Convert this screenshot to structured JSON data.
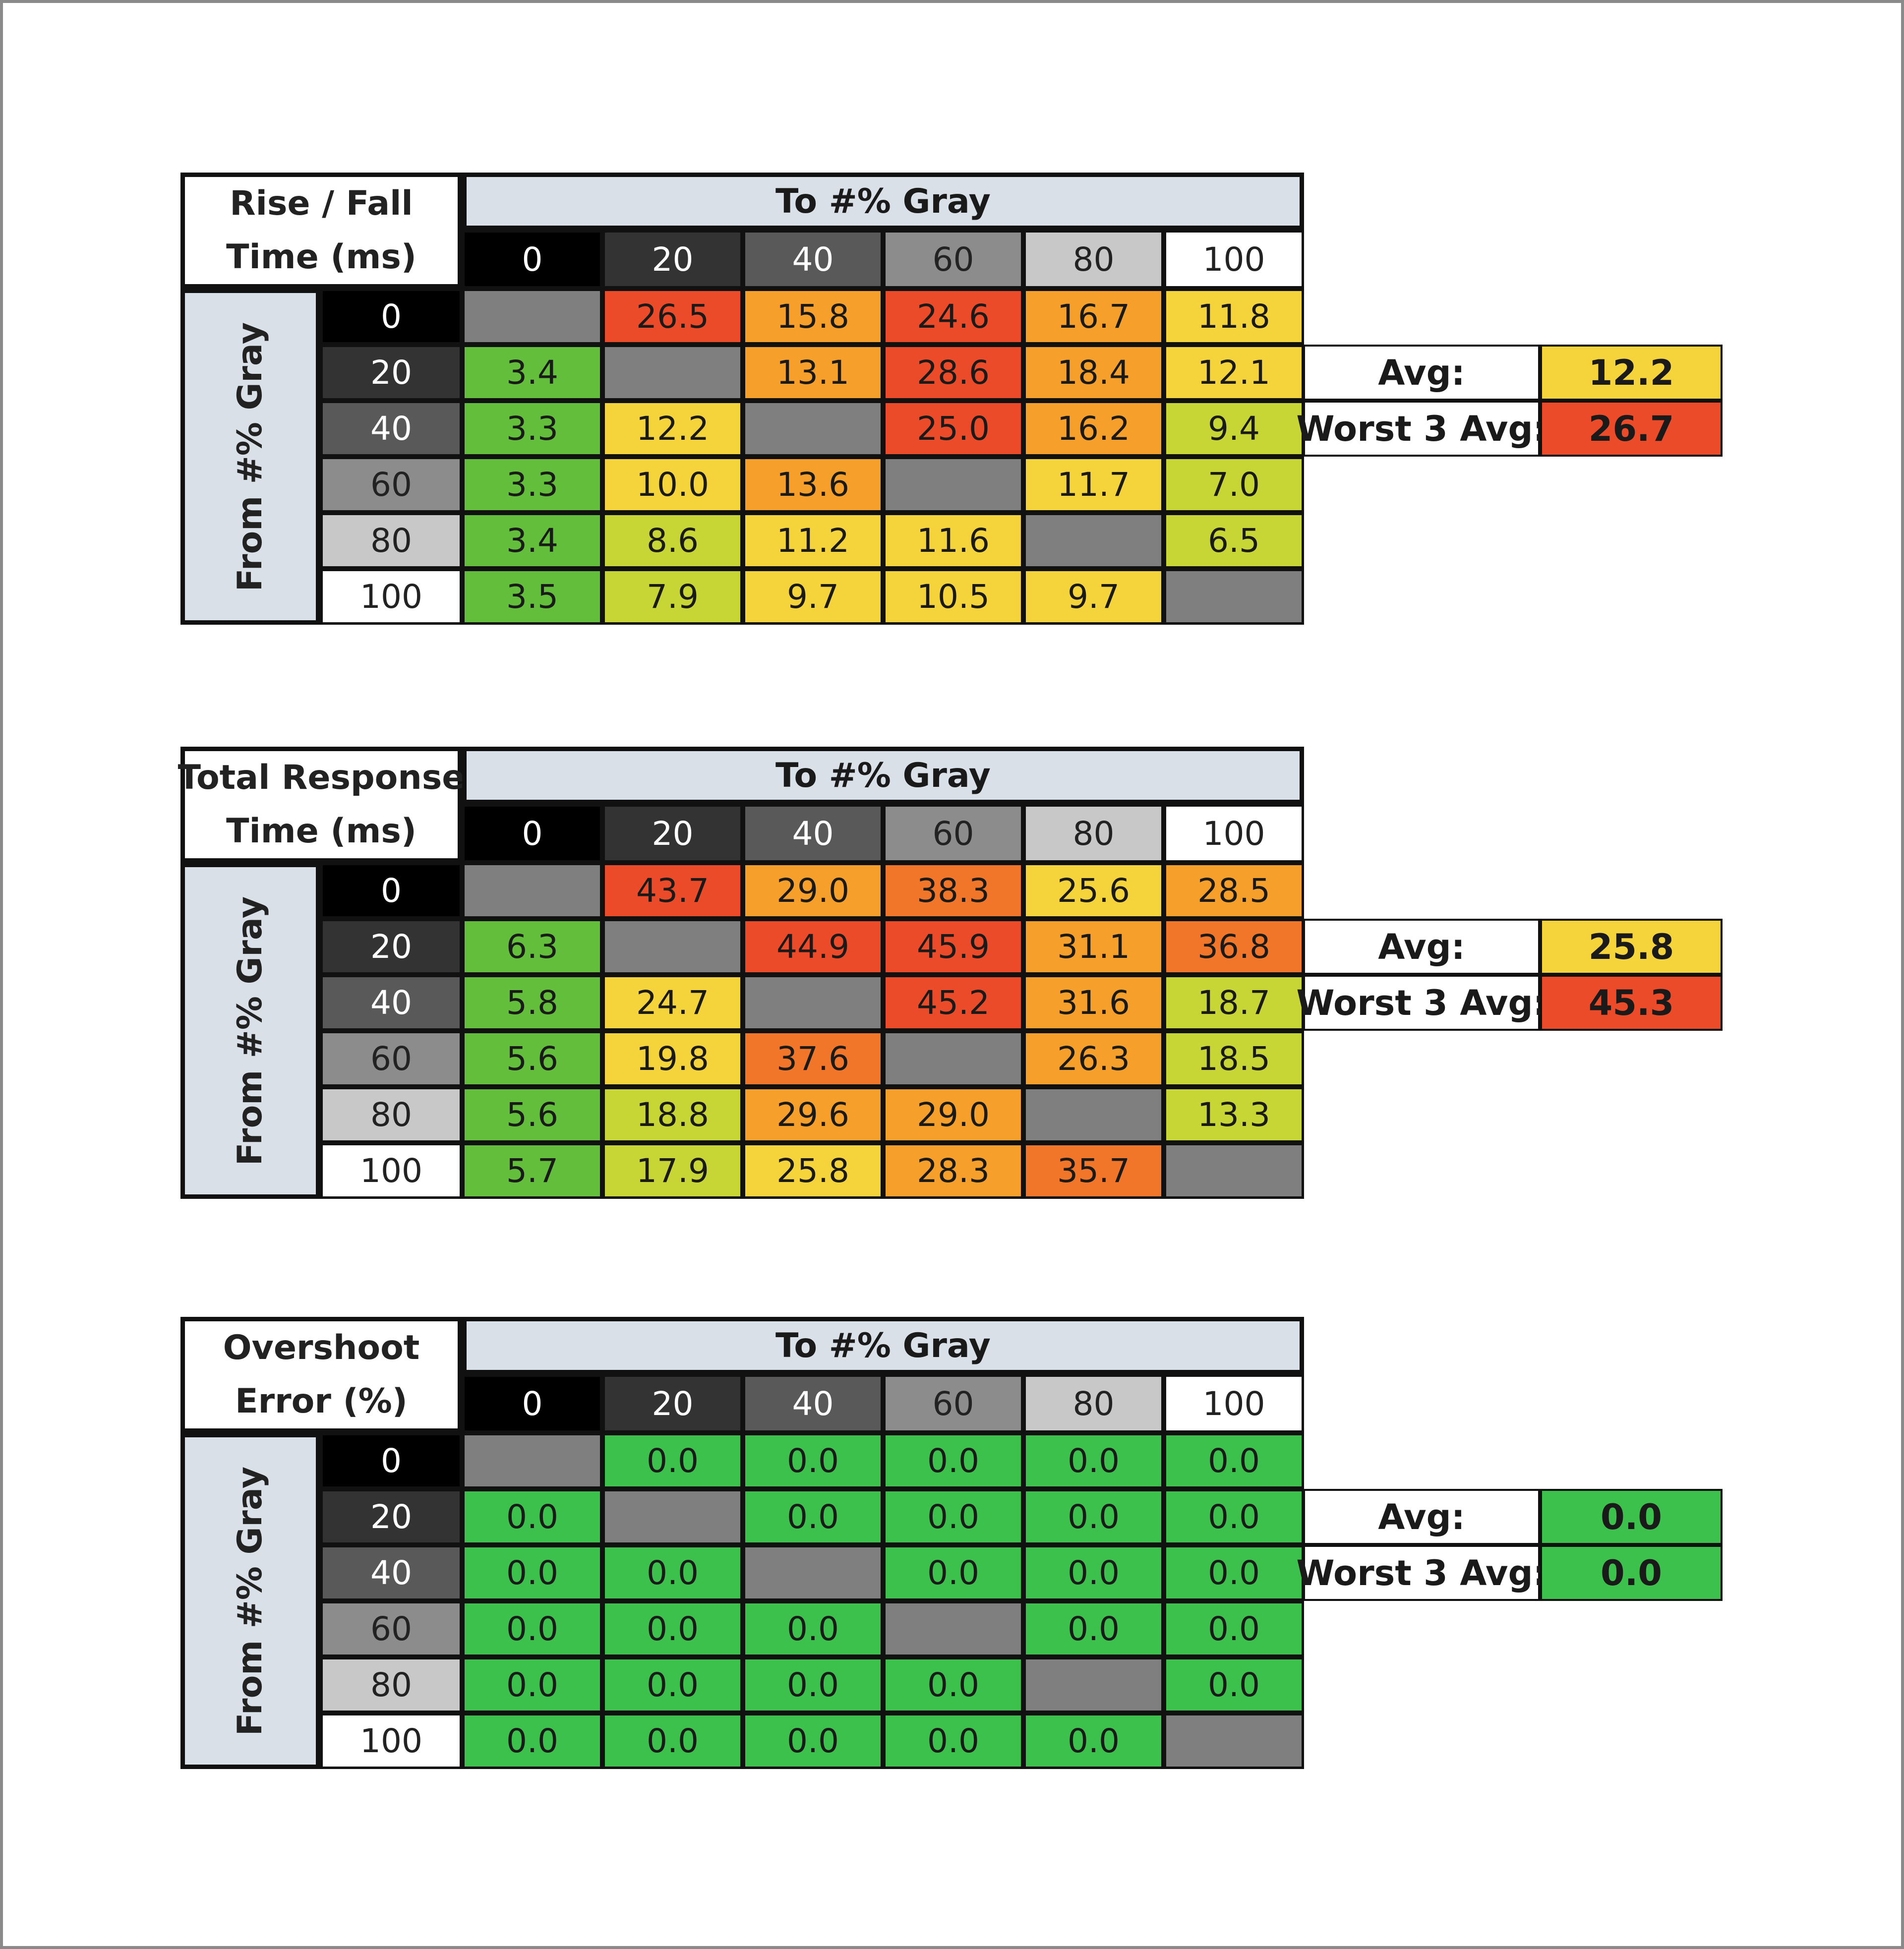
{
  "chart_data": [
    {
      "type": "heatmap",
      "title": "Rise / Fall Time (ms)",
      "title_lines": [
        "Rise / Fall",
        "Time (ms)"
      ],
      "xlabel": "To #% Gray",
      "ylabel": "From #% Gray",
      "x_categories": [
        "0",
        "20",
        "40",
        "60",
        "80",
        "100"
      ],
      "y_categories": [
        "0",
        "20",
        "40",
        "60",
        "80",
        "100"
      ],
      "cells": [
        [
          null,
          "26.5",
          "15.8",
          "24.6",
          "16.7",
          "11.8"
        ],
        [
          "3.4",
          null,
          "13.1",
          "28.6",
          "18.4",
          "12.1"
        ],
        [
          "3.3",
          "12.2",
          null,
          "25.0",
          "16.2",
          "9.4"
        ],
        [
          "3.3",
          "10.0",
          "13.6",
          null,
          "11.7",
          "7.0"
        ],
        [
          "3.4",
          "8.6",
          "11.2",
          "11.6",
          null,
          "6.5"
        ],
        [
          "3.5",
          "7.9",
          "9.7",
          "10.5",
          "9.7",
          null
        ]
      ],
      "summary": [
        {
          "label": "Avg:",
          "value": "12.2"
        },
        {
          "label": "Worst 3 Avg:",
          "value": "26.7"
        }
      ]
    },
    {
      "type": "heatmap",
      "title": "Total Response Time (ms)",
      "title_lines": [
        "Total Response",
        "Time (ms)"
      ],
      "xlabel": "To #% Gray",
      "ylabel": "From #% Gray",
      "x_categories": [
        "0",
        "20",
        "40",
        "60",
        "80",
        "100"
      ],
      "y_categories": [
        "0",
        "20",
        "40",
        "60",
        "80",
        "100"
      ],
      "cells": [
        [
          null,
          "43.7",
          "29.0",
          "38.3",
          "25.6",
          "28.5"
        ],
        [
          "6.3",
          null,
          "44.9",
          "45.9",
          "31.1",
          "36.8"
        ],
        [
          "5.8",
          "24.7",
          null,
          "45.2",
          "31.6",
          "18.7"
        ],
        [
          "5.6",
          "19.8",
          "37.6",
          null,
          "26.3",
          "18.5"
        ],
        [
          "5.6",
          "18.8",
          "29.6",
          "29.0",
          null,
          "13.3"
        ],
        [
          "5.7",
          "17.9",
          "25.8",
          "28.3",
          "35.7",
          null
        ]
      ],
      "summary": [
        {
          "label": "Avg:",
          "value": "25.8"
        },
        {
          "label": "Worst 3 Avg:",
          "value": "45.3"
        }
      ]
    },
    {
      "type": "heatmap",
      "title": "Overshoot Error (%)",
      "title_lines": [
        "Overshoot",
        "Error (%)"
      ],
      "xlabel": "To #% Gray",
      "ylabel": "From #% Gray",
      "x_categories": [
        "0",
        "20",
        "40",
        "60",
        "80",
        "100"
      ],
      "y_categories": [
        "0",
        "20",
        "40",
        "60",
        "80",
        "100"
      ],
      "cells": [
        [
          null,
          "0.0",
          "0.0",
          "0.0",
          "0.0",
          "0.0"
        ],
        [
          "0.0",
          null,
          "0.0",
          "0.0",
          "0.0",
          "0.0"
        ],
        [
          "0.0",
          "0.0",
          null,
          "0.0",
          "0.0",
          "0.0"
        ],
        [
          "0.0",
          "0.0",
          "0.0",
          null,
          "0.0",
          "0.0"
        ],
        [
          "0.0",
          "0.0",
          "0.0",
          "0.0",
          null,
          "0.0"
        ],
        [
          "0.0",
          "0.0",
          "0.0",
          "0.0",
          "0.0",
          null
        ]
      ],
      "summary": [
        {
          "label": "Avg:",
          "value": "0.0"
        },
        {
          "label": "Worst 3 Avg:",
          "value": "0.0"
        }
      ]
    }
  ],
  "colors": {
    "header_bg": "#d9e0e8",
    "diagonal": "#7f7f7f",
    "gray_shades": [
      "#000000",
      "#333333",
      "#595959",
      "#8c8c8c",
      "#c8c8c8",
      "#ffffff"
    ],
    "gray_text": [
      "#ffffff",
      "#ffffff",
      "#ffffff",
      "#222222",
      "#222222",
      "#222222"
    ],
    "scale": [
      "#63be3b",
      "#c7d634",
      "#f5d33a",
      "#f6a02b",
      "#f2762a",
      "#ec4b2a"
    ],
    "overshoot_green": "#3cc14c"
  }
}
